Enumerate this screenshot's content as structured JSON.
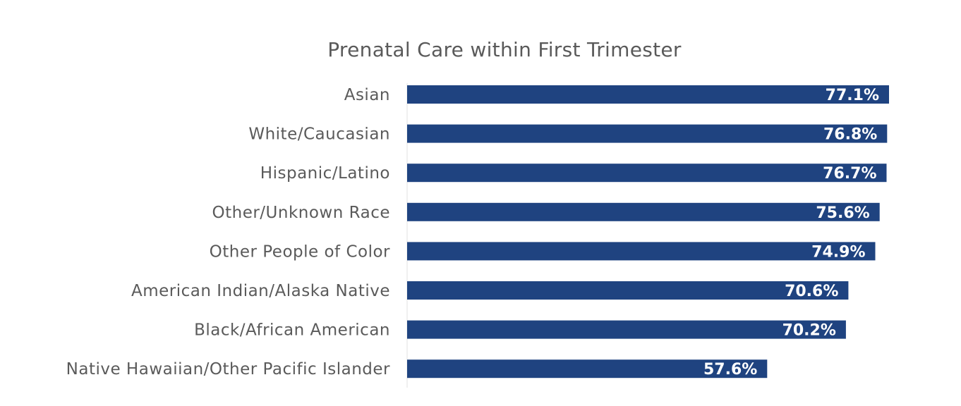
{
  "chart_data": {
    "type": "bar",
    "orientation": "horizontal",
    "title": "Prenatal Care within First Trimester",
    "categories": [
      "Asian",
      "White/Caucasian",
      "Hispanic/Latino",
      "Other/Unknown Race",
      "Other People of Color",
      "American Indian/Alaska Native",
      "Black/African American",
      "Native Hawaiian/Other Pacific Islander"
    ],
    "values": [
      77.1,
      76.8,
      76.7,
      75.6,
      74.9,
      70.6,
      70.2,
      57.6
    ],
    "value_labels": [
      "77.1%",
      "76.8%",
      "76.7%",
      "75.6%",
      "74.9%",
      "70.6%",
      "70.2%",
      "57.6%"
    ],
    "xlim": [
      0,
      77.1
    ],
    "grid": false,
    "legend": "none",
    "bar_color": "#1f4380",
    "label_color": "#5a5a5a",
    "value_label_color": "#ffffff"
  }
}
